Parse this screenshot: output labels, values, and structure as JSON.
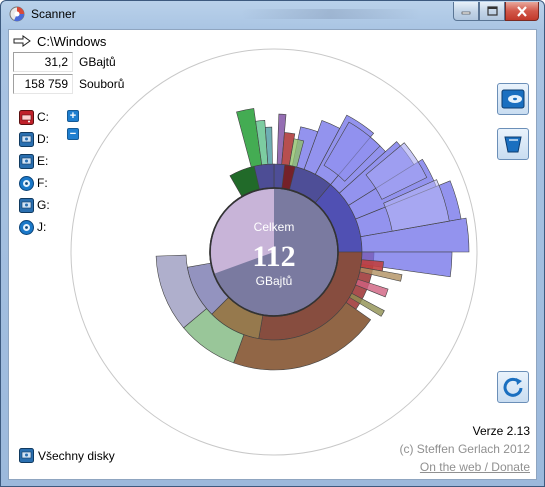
{
  "window": {
    "title": "Scanner"
  },
  "path": {
    "current": "C:\\Windows"
  },
  "stats": {
    "size_value": "31,2",
    "size_unit": "GBajtů",
    "files_value": "158 759",
    "files_unit": "Souborů"
  },
  "drives": [
    {
      "label": "C:",
      "icon": "hdd-red-icon"
    },
    {
      "label": "D:",
      "icon": "hdd-blue-icon"
    },
    {
      "label": "E:",
      "icon": "hdd-blue-icon"
    },
    {
      "label": "F:",
      "icon": "cd-icon"
    },
    {
      "label": "G:",
      "icon": "hdd-blue-icon"
    },
    {
      "label": "J:",
      "icon": "cd-icon"
    }
  ],
  "zoom": {
    "plus": "+",
    "minus": "−"
  },
  "center": {
    "top": "Celkem",
    "value": "112",
    "unit": "GBajtů"
  },
  "side_buttons": [
    {
      "name": "scan-button",
      "icon": "disk-tray-icon"
    },
    {
      "name": "delete-button",
      "icon": "bin-icon"
    },
    {
      "name": "refresh-button",
      "icon": "refresh-icon"
    }
  ],
  "all_disks": {
    "label": "Všechny disky"
  },
  "footer": {
    "version": "Verze 2.13",
    "credit": "(c) Steffen Gerlach 2012",
    "link": "On the web / Donate"
  },
  "colors": {
    "accent_blue": "#1f7fd0",
    "purple_ring": "#6f6fe8",
    "brown_ring": "#8b5e3c",
    "red_ring": "#c0392b",
    "green_ring": "#3aa84a",
    "lavender": "#b5a8d0"
  }
}
